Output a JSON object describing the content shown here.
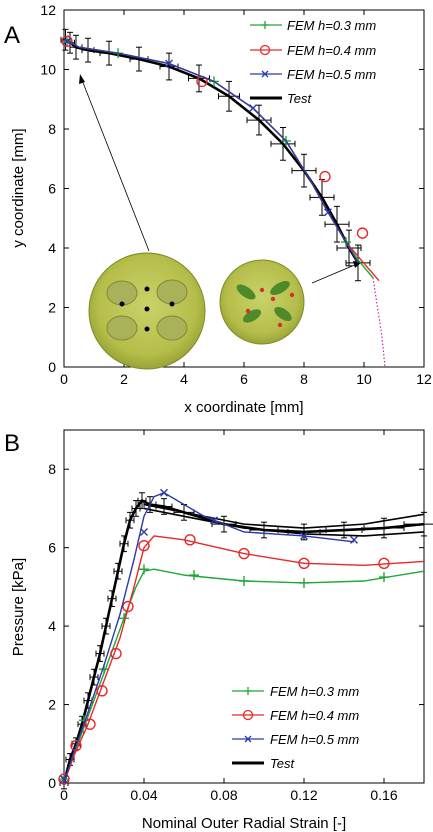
{
  "chart_data": [
    {
      "panel": "A",
      "type": "line",
      "xlabel": "x coordinate [mm]",
      "ylabel": "y coordinate [mm]",
      "xlim": [
        0,
        12
      ],
      "ylim": [
        0,
        12
      ],
      "xticks": [
        0,
        2,
        4,
        6,
        8,
        10,
        12
      ],
      "yticks": [
        0,
        2,
        4,
        6,
        8,
        10,
        12
      ],
      "grid": false,
      "legend_position": "top-right",
      "series": [
        {
          "name": "FEM h=0.3 mm",
          "color": "#1fa83a",
          "marker": "plus",
          "x": [
            0.05,
            0.5,
            1.8,
            3.5,
            5.0,
            6.3,
            7.4,
            8.2,
            8.8,
            9.4,
            9.8,
            10.3
          ],
          "y": [
            11.0,
            10.75,
            10.55,
            10.2,
            9.6,
            8.7,
            7.6,
            6.3,
            5.2,
            4.2,
            3.6,
            3.0
          ],
          "markers_x": [
            0.1,
            1.8,
            5.0,
            7.4,
            9.4
          ],
          "markers_y": [
            10.95,
            10.55,
            9.6,
            7.6,
            4.2
          ]
        },
        {
          "name": "FEM h=0.4 mm",
          "color": "#e8282a",
          "marker": "circle",
          "x": [
            0.05,
            0.5,
            1.8,
            3.5,
            5.0,
            6.3,
            7.4,
            8.2,
            8.8,
            9.4,
            9.9,
            10.5
          ],
          "y": [
            11.0,
            10.75,
            10.55,
            10.2,
            9.6,
            8.7,
            7.6,
            6.3,
            5.2,
            4.2,
            3.6,
            2.9
          ],
          "markers_x": [
            0.1,
            4.6,
            8.7,
            9.95
          ],
          "markers_y": [
            10.95,
            9.6,
            6.4,
            4.5
          ]
        },
        {
          "name": "FEM h=0.5 mm",
          "color": "#2a3aa8",
          "marker": "x",
          "x": [
            0.05,
            0.5,
            1.8,
            3.5,
            5.0,
            6.3,
            7.4,
            8.2,
            8.8,
            9.4,
            9.8
          ],
          "y": [
            11.0,
            10.75,
            10.55,
            10.2,
            9.6,
            8.7,
            7.6,
            6.3,
            5.2,
            4.2,
            3.5
          ],
          "markers_x": [
            0.1,
            3.5,
            6.3,
            8.8
          ],
          "markers_y": [
            10.95,
            10.2,
            8.7,
            5.2
          ]
        },
        {
          "name": "Test",
          "color": "#000000",
          "marker": "errorbar",
          "x": [
            0.05,
            0.2,
            0.4,
            0.8,
            1.5,
            2.5,
            3.5,
            4.5,
            5.5,
            6.5,
            7.3,
            8.0,
            8.6,
            9.1,
            9.5,
            9.8
          ],
          "y": [
            11.0,
            10.9,
            10.75,
            10.65,
            10.55,
            10.35,
            10.1,
            9.7,
            9.1,
            8.3,
            7.5,
            6.6,
            5.7,
            4.8,
            4.0,
            3.5
          ],
          "xerr": [
            0.15,
            0.15,
            0.2,
            0.2,
            0.3,
            0.3,
            0.3,
            0.35,
            0.35,
            0.4,
            0.4,
            0.4,
            0.4,
            0.4,
            0.4,
            0.4
          ],
          "yerr": [
            0.35,
            0.35,
            0.4,
            0.4,
            0.4,
            0.4,
            0.45,
            0.45,
            0.5,
            0.5,
            0.55,
            0.55,
            0.6,
            0.6,
            0.6,
            0.6
          ]
        },
        {
          "name": "",
          "color": "#c8289a",
          "marker": "none",
          "style": "dotted",
          "x": [
            10.3,
            10.45,
            10.6,
            10.7
          ],
          "y": [
            3.0,
            2.0,
            1.0,
            0.0
          ]
        }
      ]
    },
    {
      "panel": "B",
      "type": "line",
      "xlabel": "Nominal Outer Radial Strain [-]",
      "ylabel": "Pressure [kPa]",
      "xlim": [
        0,
        0.18
      ],
      "ylim": [
        0,
        9.0
      ],
      "xticks": [
        0,
        0.04,
        0.08,
        0.12,
        0.16
      ],
      "xticklabels": [
        "0",
        "0.04",
        "0.08",
        "0.12",
        "0.16"
      ],
      "yticks": [
        0,
        2,
        4,
        6,
        8
      ],
      "grid": false,
      "legend_position": "bottom-right",
      "series": [
        {
          "name": "FEM h=0.3 mm",
          "color": "#1fa83a",
          "marker": "plus",
          "x": [
            0,
            0.004,
            0.012,
            0.02,
            0.03,
            0.036,
            0.04,
            0.045,
            0.06,
            0.09,
            0.12,
            0.15,
            0.18
          ],
          "y": [
            0,
            0.6,
            1.7,
            2.8,
            4.2,
            5.0,
            5.4,
            5.45,
            5.3,
            5.15,
            5.1,
            5.15,
            5.4
          ],
          "markers_x": [
            0,
            0.01,
            0.02,
            0.03,
            0.04,
            0.065,
            0.09,
            0.12,
            0.16
          ],
          "markers_y": [
            0.1,
            1.6,
            2.9,
            4.2,
            5.45,
            5.3,
            5.15,
            5.1,
            5.25
          ]
        },
        {
          "name": "FEM h=0.4 mm",
          "color": "#e8282a",
          "marker": "circle",
          "x": [
            0,
            0.005,
            0.012,
            0.02,
            0.028,
            0.035,
            0.04,
            0.045,
            0.06,
            0.09,
            0.12,
            0.15,
            0.18
          ],
          "y": [
            0,
            0.7,
            1.5,
            2.6,
            3.7,
            5.0,
            6.0,
            6.3,
            6.2,
            5.85,
            5.6,
            5.55,
            5.65
          ],
          "markers_x": [
            0,
            0.006,
            0.013,
            0.019,
            0.026,
            0.032,
            0.04,
            0.063,
            0.09,
            0.12,
            0.16
          ],
          "markers_y": [
            0.1,
            0.95,
            1.5,
            2.35,
            3.3,
            4.5,
            6.05,
            6.2,
            5.85,
            5.6,
            5.6
          ]
        },
        {
          "name": "FEM h=0.5 mm",
          "color": "#2a3aa8",
          "marker": "x",
          "x": [
            0,
            0.005,
            0.012,
            0.02,
            0.028,
            0.035,
            0.04,
            0.045,
            0.05,
            0.07,
            0.09,
            0.12,
            0.145
          ],
          "y": [
            0,
            0.8,
            1.8,
            3.0,
            4.3,
            5.7,
            6.8,
            7.3,
            7.4,
            6.8,
            6.4,
            6.3,
            6.15
          ],
          "markers_x": [
            0,
            0.04,
            0.05,
            0.075,
            0.12,
            0.145
          ],
          "markers_y": [
            0.1,
            6.4,
            7.4,
            6.7,
            6.3,
            6.2
          ]
        },
        {
          "name": "Test",
          "color": "#000000",
          "marker": "errorbar",
          "x": [
            0,
            0.003,
            0.006,
            0.009,
            0.012,
            0.015,
            0.018,
            0.021,
            0.024,
            0.027,
            0.03,
            0.033,
            0.036,
            0.039,
            0.043,
            0.05,
            0.06,
            0.08,
            0.1,
            0.12,
            0.14,
            0.16,
            0.18
          ],
          "y": [
            0,
            0.6,
            1.0,
            1.5,
            2.1,
            2.7,
            3.3,
            4.0,
            4.7,
            5.4,
            6.1,
            6.7,
            7.0,
            7.2,
            7.1,
            7.05,
            6.9,
            6.6,
            6.45,
            6.4,
            6.45,
            6.5,
            6.6
          ],
          "xerr": [
            0.002,
            0.002,
            0.002,
            0.002,
            0.002,
            0.002,
            0.002,
            0.002,
            0.002,
            0.002,
            0.002,
            0.002,
            0.002,
            0.002,
            0.003,
            0.004,
            0.005,
            0.006,
            0.007,
            0.008,
            0.009,
            0.01,
            0.01
          ],
          "yerr": [
            0.15,
            0.15,
            0.15,
            0.2,
            0.2,
            0.2,
            0.2,
            0.2,
            0.2,
            0.2,
            0.2,
            0.2,
            0.2,
            0.2,
            0.2,
            0.2,
            0.2,
            0.2,
            0.2,
            0.2,
            0.2,
            0.25,
            0.3
          ],
          "extra_lines": [
            {
              "x": [
                0.04,
                0.06,
                0.09,
                0.12,
                0.15,
                0.18
              ],
              "y": [
                7.0,
                6.8,
                6.5,
                6.35,
                6.3,
                6.4
              ]
            },
            {
              "x": [
                0.04,
                0.06,
                0.09,
                0.12,
                0.15,
                0.18
              ],
              "y": [
                7.1,
                6.9,
                6.6,
                6.5,
                6.6,
                6.85
              ]
            }
          ]
        }
      ]
    }
  ]
}
